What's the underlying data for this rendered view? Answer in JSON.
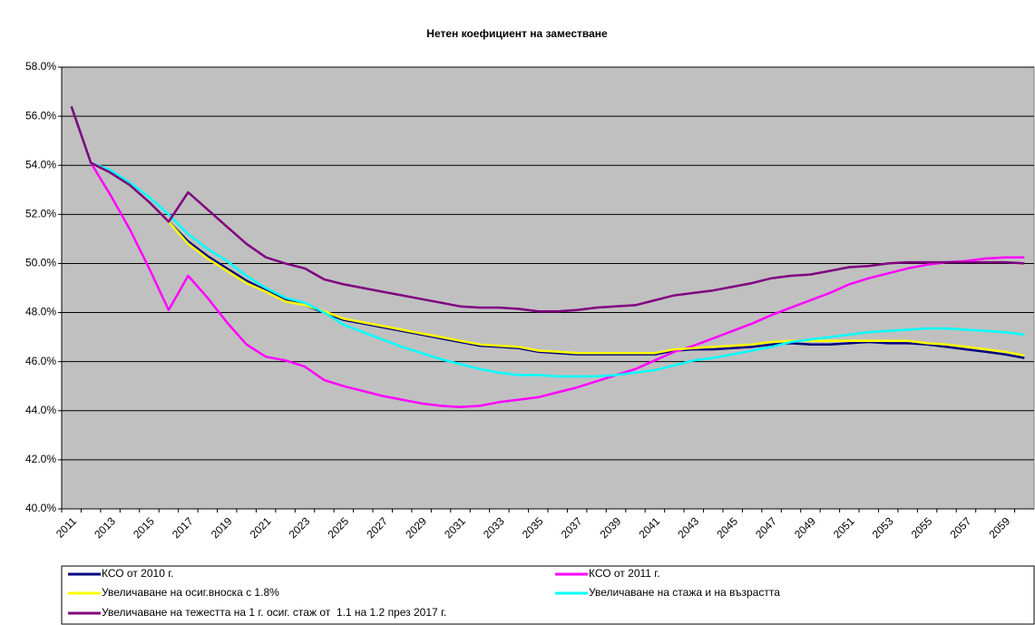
{
  "chart_data": {
    "type": "line",
    "title": "Нетен коефициент на заместване",
    "categories": [
      "2011",
      null,
      "2013",
      null,
      "2015",
      null,
      "2017",
      null,
      "2019",
      null,
      "2021",
      null,
      "2023",
      null,
      "2025",
      null,
      "2027",
      null,
      "2029",
      null,
      "2031",
      null,
      "2033",
      null,
      "2035",
      null,
      "2037",
      null,
      "2039",
      null,
      "2041",
      null,
      "2043",
      null,
      "2045",
      null,
      "2047",
      null,
      "2049",
      null,
      "2051",
      null,
      "2053",
      null,
      "2055",
      null,
      "2057",
      null,
      "2059",
      null
    ],
    "ylim": [
      40,
      58
    ],
    "yticks": [
      {
        "value": 40,
        "label": "40.0%"
      },
      {
        "value": 42,
        "label": "42.0%"
      },
      {
        "value": 44,
        "label": "44.0%"
      },
      {
        "value": 46,
        "label": "46.0%"
      },
      {
        "value": 48,
        "label": "48.0%"
      },
      {
        "value": 50,
        "label": "50.0%"
      },
      {
        "value": 52,
        "label": "52.0%"
      },
      {
        "value": 54,
        "label": "54.0%"
      },
      {
        "value": 56,
        "label": "56.0%"
      },
      {
        "value": 58,
        "label": "58.0%"
      }
    ],
    "grid": true,
    "series": [
      {
        "name": "КСО от 2010 г.",
        "color": "#000080",
        "values": [
          56.4,
          54.1,
          53.7,
          53.2,
          52.5,
          51.7,
          50.9,
          50.3,
          49.8,
          49.3,
          48.9,
          48.5,
          48.3,
          48.0,
          47.7,
          47.55,
          47.4,
          47.25,
          47.1,
          46.95,
          46.8,
          46.65,
          46.6,
          46.55,
          46.4,
          46.35,
          46.3,
          46.3,
          46.3,
          46.3,
          46.3,
          46.45,
          46.5,
          46.5,
          46.55,
          46.6,
          46.7,
          46.75,
          46.7,
          46.7,
          46.75,
          46.8,
          46.75,
          46.75,
          46.7,
          46.6,
          46.5,
          46.4,
          46.3,
          46.15
        ]
      },
      {
        "name": "КСО от 2011 г.",
        "color": "#ff00ff",
        "values": [
          56.4,
          54.1,
          52.8,
          51.4,
          49.8,
          48.1,
          49.5,
          48.6,
          47.6,
          46.7,
          46.2,
          46.05,
          45.8,
          45.25,
          45.0,
          44.8,
          44.6,
          44.45,
          44.3,
          44.2,
          44.15,
          44.2,
          44.35,
          44.45,
          44.55,
          44.75,
          44.95,
          45.2,
          45.45,
          45.7,
          46.05,
          46.4,
          46.65,
          46.95,
          47.25,
          47.55,
          47.9,
          48.2,
          48.5,
          48.8,
          49.15,
          49.4,
          49.6,
          49.8,
          49.95,
          50.05,
          50.1,
          50.2,
          50.25,
          50.25
        ]
      },
      {
        "name": "Увеличаване на осиг.вноска с 1.8%",
        "color": "#ffff00",
        "values": [
          56.4,
          54.1,
          53.7,
          53.2,
          52.5,
          51.7,
          50.8,
          50.2,
          49.7,
          49.2,
          48.85,
          48.45,
          48.3,
          48.05,
          47.75,
          47.6,
          47.45,
          47.3,
          47.15,
          47.0,
          46.85,
          46.7,
          46.65,
          46.6,
          46.45,
          46.4,
          46.35,
          46.35,
          46.35,
          46.35,
          46.35,
          46.5,
          46.55,
          46.6,
          46.65,
          46.7,
          46.8,
          46.85,
          46.85,
          46.85,
          46.85,
          46.85,
          46.85,
          46.85,
          46.75,
          46.7,
          46.6,
          46.5,
          46.4,
          46.25
        ]
      },
      {
        "name": "Увеличаване на стажа и на възрастта",
        "color": "#00ffff",
        "values": [
          56.4,
          54.1,
          53.8,
          53.3,
          52.7,
          52.0,
          51.2,
          50.6,
          50.1,
          49.5,
          49.0,
          48.6,
          48.4,
          48.0,
          47.5,
          47.2,
          46.9,
          46.6,
          46.35,
          46.1,
          45.9,
          45.7,
          45.55,
          45.45,
          45.45,
          45.4,
          45.4,
          45.4,
          45.45,
          45.55,
          45.65,
          45.85,
          46.05,
          46.15,
          46.3,
          46.45,
          46.6,
          46.8,
          46.9,
          47.0,
          47.1,
          47.2,
          47.25,
          47.3,
          47.35,
          47.35,
          47.3,
          47.25,
          47.2,
          47.1
        ]
      },
      {
        "name": "Увеличаване на тежестта на 1 г. осиг. стаж от  1.1 на 1.2 през 2017 г.",
        "color": "#800080",
        "values": [
          56.4,
          54.1,
          53.7,
          53.2,
          52.5,
          51.7,
          52.9,
          52.2,
          51.5,
          50.8,
          50.25,
          50.0,
          49.8,
          49.35,
          49.15,
          49.0,
          48.85,
          48.7,
          48.55,
          48.4,
          48.25,
          48.2,
          48.2,
          48.15,
          48.05,
          48.05,
          48.1,
          48.2,
          48.25,
          48.3,
          48.5,
          48.7,
          48.8,
          48.9,
          49.05,
          49.2,
          49.4,
          49.5,
          49.55,
          49.7,
          49.85,
          49.9,
          50.0,
          50.05,
          50.05,
          50.05,
          50.05,
          50.05,
          50.05,
          50.0
        ]
      }
    ]
  }
}
